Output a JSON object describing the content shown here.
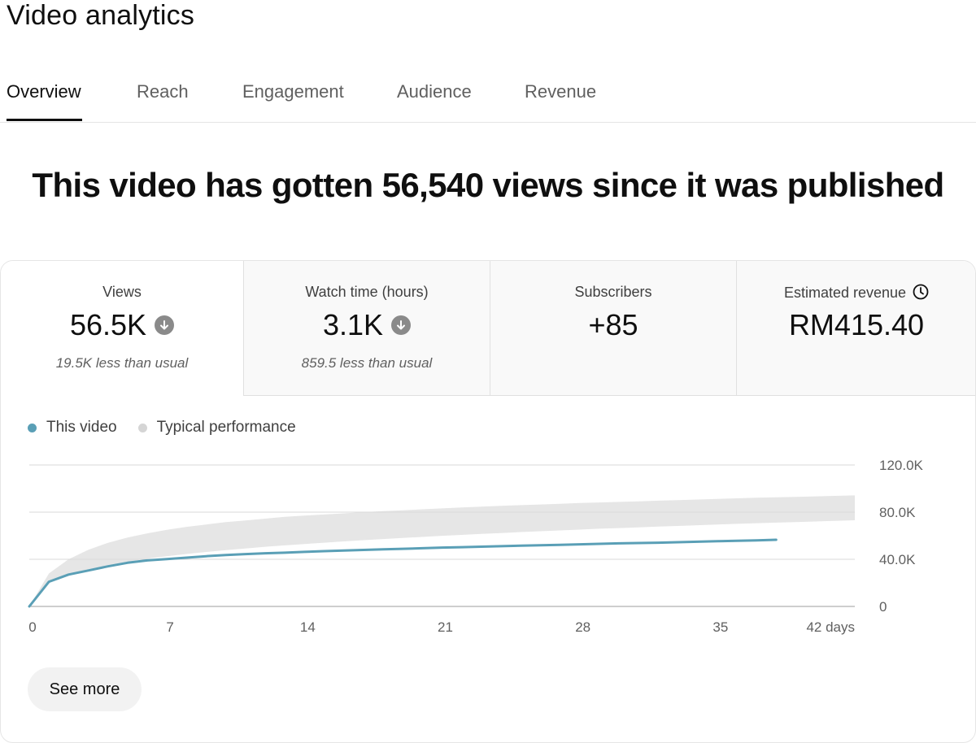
{
  "page": {
    "title": "Video analytics"
  },
  "tabs": [
    {
      "label": "Overview",
      "active": true
    },
    {
      "label": "Reach",
      "active": false
    },
    {
      "label": "Engagement",
      "active": false
    },
    {
      "label": "Audience",
      "active": false
    },
    {
      "label": "Revenue",
      "active": false
    }
  ],
  "headline": "This video has gotten 56,540 views since it was published",
  "metrics": [
    {
      "label": "Views",
      "value": "56.5K",
      "icon": "arrow-down-circle-icon",
      "note": "19.5K less than usual"
    },
    {
      "label": "Watch time (hours)",
      "value": "3.1K",
      "icon": "arrow-down-circle-icon",
      "note": "859.5 less than usual"
    },
    {
      "label": "Subscribers",
      "value": "+85"
    },
    {
      "label": "Estimated revenue",
      "value": "RM415.40",
      "icon": "clock-icon"
    }
  ],
  "legend": {
    "this_video": "This video",
    "typical": "Typical performance"
  },
  "colors": {
    "this_video": "#5a9fb6",
    "typical": "#e6e6e6",
    "typical_dot": "#d5d5d5",
    "grid": "#d9d9d9"
  },
  "chart_data": {
    "type": "line",
    "xlabel": "",
    "ylabel": "",
    "xlim": [
      0,
      42
    ],
    "ylim": [
      0,
      120000
    ],
    "x_ticks": [
      "0",
      "7",
      "14",
      "21",
      "28",
      "35",
      "42 days"
    ],
    "y_ticks": [
      "0",
      "40.0K",
      "80.0K",
      "120.0K"
    ],
    "y_tick_values": [
      0,
      40000,
      80000,
      120000
    ],
    "x_tick_values": [
      0,
      7,
      14,
      21,
      28,
      35,
      42
    ],
    "series": [
      {
        "name": "This video",
        "x": [
          0,
          1,
          2,
          3,
          4,
          5,
          6,
          7,
          8,
          9,
          10,
          11,
          12,
          13,
          14,
          15,
          16,
          17,
          18,
          19,
          20,
          21,
          22,
          23,
          24,
          25,
          26,
          27,
          28,
          29,
          30,
          31,
          32,
          33,
          34,
          35,
          36,
          37,
          38
        ],
        "values": [
          0,
          21000,
          27000,
          30500,
          34000,
          37000,
          39000,
          40200,
          41400,
          42600,
          43600,
          44400,
          45100,
          45600,
          46300,
          46900,
          47400,
          47900,
          48400,
          48900,
          49400,
          49900,
          50300,
          50700,
          51100,
          51500,
          51900,
          52300,
          52700,
          53100,
          53500,
          53800,
          54100,
          54500,
          54900,
          55300,
          55700,
          56100,
          56540
        ]
      }
    ],
    "typical_band": {
      "name": "Typical performance",
      "x": [
        0,
        1,
        2,
        3,
        4,
        5,
        6,
        7,
        8,
        9,
        10,
        11,
        12,
        13,
        14,
        15,
        16,
        17,
        18,
        19,
        20,
        21,
        22,
        23,
        24,
        25,
        26,
        27,
        28,
        29,
        30,
        31,
        32,
        33,
        34,
        35,
        36,
        37,
        38,
        39,
        40,
        41,
        42
      ],
      "upper": [
        0,
        28000,
        40000,
        48000,
        54000,
        58500,
        62000,
        65000,
        67500,
        69500,
        71500,
        73000,
        74500,
        76000,
        77000,
        78000,
        79000,
        80000,
        80800,
        81600,
        82400,
        83200,
        83900,
        84600,
        85300,
        85900,
        86500,
        87100,
        87700,
        88200,
        88700,
        89200,
        89700,
        90200,
        90700,
        91200,
        91700,
        92200,
        92600,
        93000,
        93400,
        93800,
        94200
      ],
      "lower": [
        0,
        21000,
        27500,
        31500,
        35000,
        38000,
        40500,
        42600,
        44500,
        46200,
        47800,
        49200,
        50600,
        51800,
        53000,
        54100,
        55200,
        56200,
        57200,
        58100,
        59000,
        59900,
        60700,
        61500,
        62300,
        63100,
        63800,
        64500,
        65200,
        65900,
        66500,
        67100,
        67700,
        68300,
        68900,
        69500,
        70100,
        70600,
        71100,
        71600,
        72100,
        72600,
        73100
      ]
    },
    "legend_position": "top-left",
    "grid": true
  },
  "footer": {
    "see_more_label": "See more"
  }
}
